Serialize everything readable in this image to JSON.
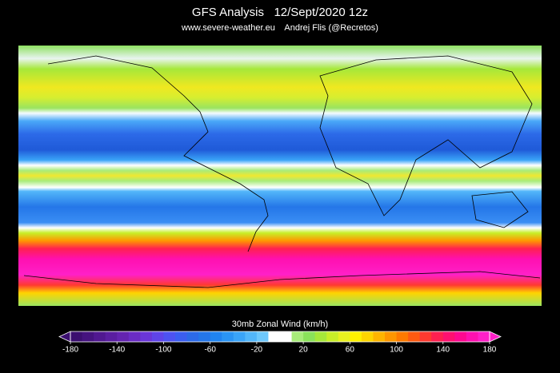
{
  "header": {
    "title": "GFS Analysis   12/Sept/2020 12z",
    "subtitle": "www.severe-weather.eu    Andrej Flis (@Recretos)"
  },
  "colorbar": {
    "label": "30mb Zonal Wind (km/h)",
    "lim": [
      -180,
      180
    ],
    "ticks": [
      -180,
      -140,
      -100,
      -60,
      -20,
      20,
      60,
      100,
      140,
      180
    ],
    "colors": [
      "#3b0f6f",
      "#45137f",
      "#501890",
      "#5a1ea0",
      "#6424b0",
      "#6a2cc4",
      "#6a36d8",
      "#5f44e8",
      "#4d52f0",
      "#3b5ef0",
      "#2c6ae8",
      "#2476e8",
      "#2084f0",
      "#2a94f4",
      "#3aa4f8",
      "#52b6fa",
      "#6ec8fc",
      "#ffffff",
      "#ffffff",
      "#a8ec7a",
      "#8ae25a",
      "#a6e83a",
      "#c8ee28",
      "#e8f020",
      "#fff000",
      "#ffd400",
      "#ffb400",
      "#ff9600",
      "#ff7a00",
      "#ff5a10",
      "#ff3a30",
      "#ff2050",
      "#ff1070",
      "#ff0890",
      "#ff10b0",
      "#ff20c8"
    ]
  }
}
